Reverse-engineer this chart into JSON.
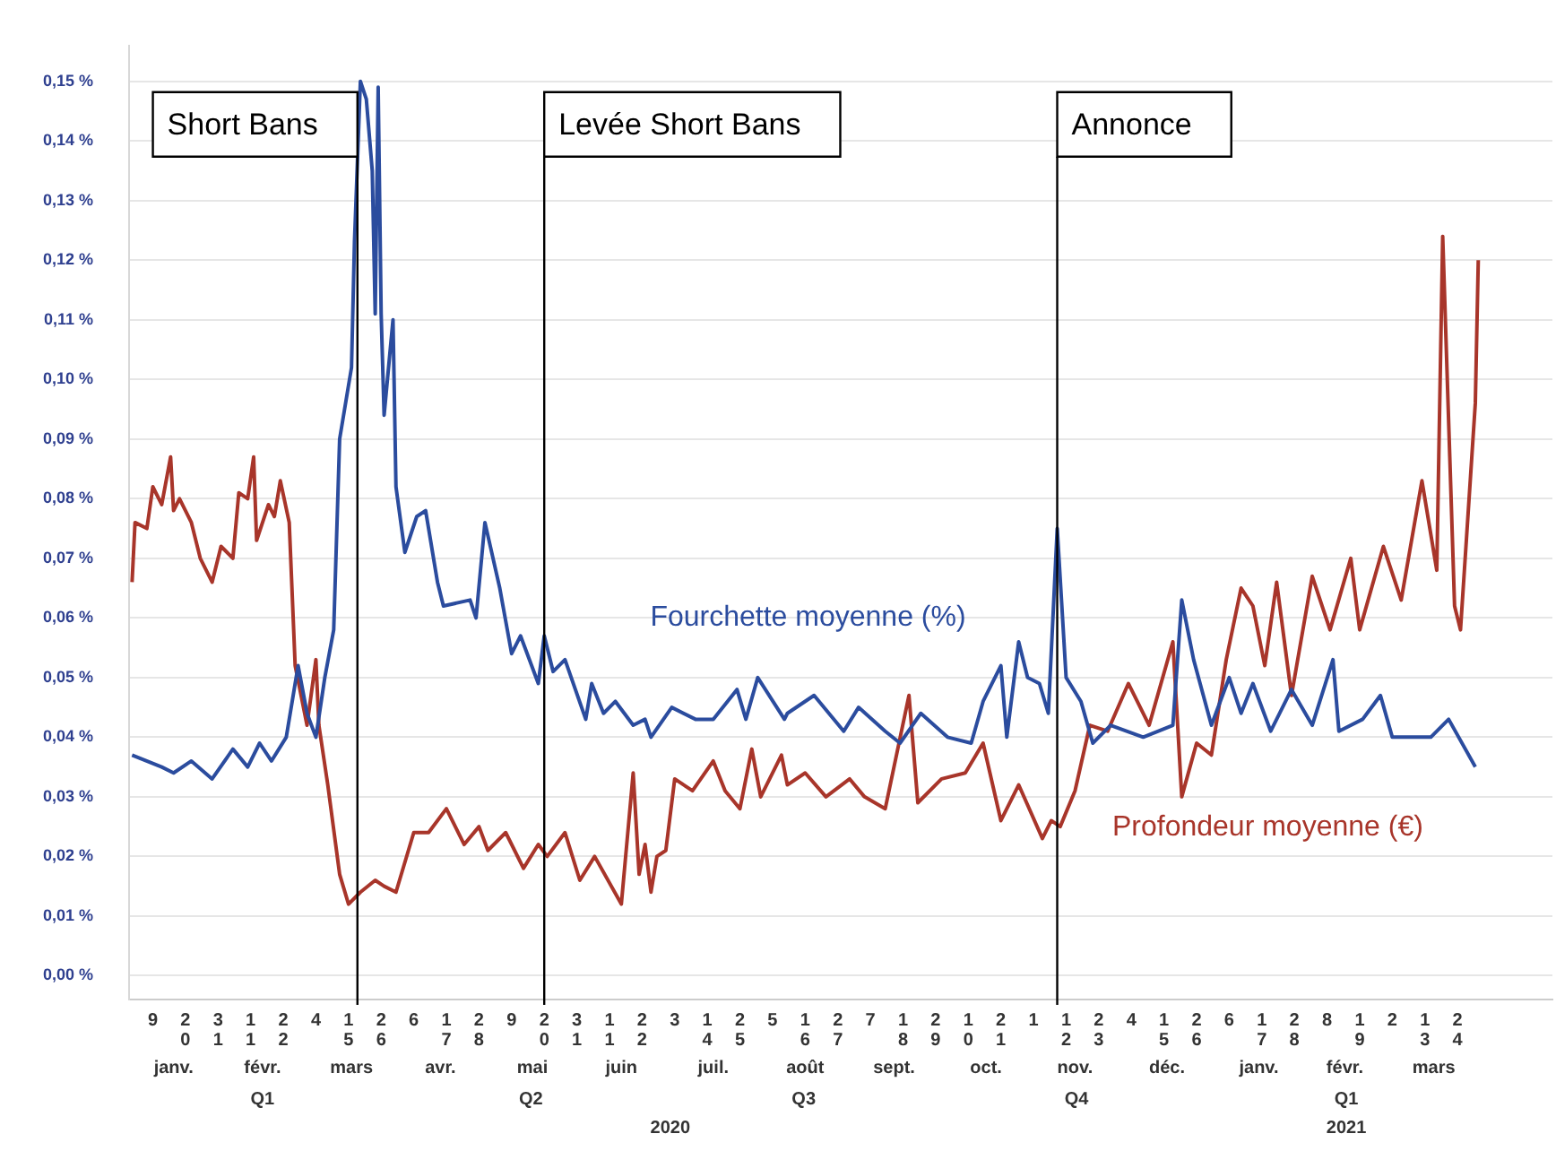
{
  "chart_data": {
    "type": "line",
    "series": [
      {
        "name": "Fourchette moyenne (%)",
        "color": "#2b4c9e",
        "x": [
          "2020-01-02",
          "2020-01-12",
          "2020-01-16",
          "2020-01-22",
          "2020-01-29",
          "2020-02-05",
          "2020-02-10",
          "2020-02-14",
          "2020-02-18",
          "2020-02-23",
          "2020-02-27",
          "2020-03-01",
          "2020-03-04",
          "2020-03-07",
          "2020-03-10",
          "2020-03-12",
          "2020-03-16",
          "2020-03-17",
          "2020-03-19",
          "2020-03-21",
          "2020-03-23",
          "2020-03-24",
          "2020-03-25",
          "2020-03-26",
          "2020-03-27",
          "2020-03-30",
          "2020-03-31",
          "2020-04-03",
          "2020-04-07",
          "2020-04-10",
          "2020-04-14",
          "2020-04-16",
          "2020-04-25",
          "2020-04-27",
          "2020-04-30",
          "2020-05-05",
          "2020-05-09",
          "2020-05-12",
          "2020-05-18",
          "2020-05-20",
          "2020-05-23",
          "2020-05-27",
          "2020-06-03",
          "2020-06-05",
          "2020-06-09",
          "2020-06-13",
          "2020-06-19",
          "2020-06-23",
          "2020-06-25",
          "2020-07-02",
          "2020-07-10",
          "2020-07-16",
          "2020-07-24",
          "2020-07-27",
          "2020-07-31",
          "2020-08-09",
          "2020-08-10",
          "2020-08-19",
          "2020-08-29",
          "2020-09-03",
          "2020-09-12",
          "2020-09-17",
          "2020-09-24",
          "2020-10-03",
          "2020-10-11",
          "2020-10-15",
          "2020-10-21",
          "2020-10-23",
          "2020-10-27",
          "2020-10-30",
          "2020-11-03",
          "2020-11-06",
          "2020-11-09",
          "2020-11-12",
          "2020-11-17",
          "2020-11-21",
          "2020-11-27",
          "2020-12-08",
          "2020-12-18",
          "2020-12-21",
          "2020-12-25",
          "2020-12-31",
          "2021-01-06",
          "2021-01-10",
          "2021-01-14",
          "2021-01-20",
          "2021-01-27",
          "2021-02-03",
          "2021-02-10",
          "2021-02-12",
          "2021-02-20",
          "2021-02-26",
          "2021-03-02",
          "2021-03-15",
          "2021-03-21",
          "2021-03-30"
        ],
        "values": [
          0.037,
          0.035,
          0.034,
          0.036,
          0.033,
          0.038,
          0.035,
          0.039,
          0.036,
          0.04,
          0.052,
          0.044,
          0.04,
          0.05,
          0.058,
          0.09,
          0.102,
          0.123,
          0.15,
          0.147,
          0.135,
          0.111,
          0.149,
          0.111,
          0.094,
          0.11,
          0.082,
          0.071,
          0.077,
          0.078,
          0.066,
          0.062,
          0.063,
          0.06,
          0.076,
          0.065,
          0.054,
          0.057,
          0.049,
          0.057,
          0.051,
          0.053,
          0.043,
          0.049,
          0.044,
          0.046,
          0.042,
          0.043,
          0.04,
          0.045,
          0.043,
          0.043,
          0.048,
          0.043,
          0.05,
          0.043,
          0.044,
          0.047,
          0.041,
          0.045,
          0.041,
          0.039,
          0.044,
          0.04,
          0.039,
          0.046,
          0.052,
          0.04,
          0.056,
          0.05,
          0.049,
          0.044,
          0.075,
          0.05,
          0.046,
          0.039,
          0.042,
          0.04,
          0.042,
          0.063,
          0.053,
          0.042,
          0.05,
          0.044,
          0.049,
          0.041,
          0.048,
          0.042,
          0.053,
          0.041,
          0.043,
          0.047,
          0.04,
          0.04,
          0.043,
          0.035
        ]
      },
      {
        "name": "Profondeur moyenne (€)",
        "color": "#a8352a",
        "x": [
          "2020-01-02",
          "2020-01-03",
          "2020-01-07",
          "2020-01-09",
          "2020-01-12",
          "2020-01-15",
          "2020-01-16",
          "2020-01-18",
          "2020-01-22",
          "2020-01-25",
          "2020-01-29",
          "2020-02-01",
          "2020-02-05",
          "2020-02-07",
          "2020-02-10",
          "2020-02-12",
          "2020-02-13",
          "2020-02-17",
          "2020-02-19",
          "2020-02-21",
          "2020-02-24",
          "2020-02-26",
          "2020-03-01",
          "2020-03-04",
          "2020-03-05",
          "2020-03-08",
          "2020-03-12",
          "2020-03-15",
          "2020-03-19",
          "2020-03-24",
          "2020-03-27",
          "2020-03-31",
          "2020-04-06",
          "2020-04-11",
          "2020-04-17",
          "2020-04-23",
          "2020-04-28",
          "2020-05-01",
          "2020-05-07",
          "2020-05-13",
          "2020-05-18",
          "2020-05-21",
          "2020-05-27",
          "2020-06-01",
          "2020-06-06",
          "2020-06-15",
          "2020-06-19",
          "2020-06-21",
          "2020-06-23",
          "2020-06-25",
          "2020-06-27",
          "2020-06-30",
          "2020-07-03",
          "2020-07-09",
          "2020-07-16",
          "2020-07-20",
          "2020-07-25",
          "2020-07-29",
          "2020-08-01",
          "2020-08-08",
          "2020-08-10",
          "2020-08-16",
          "2020-08-23",
          "2020-08-31",
          "2020-09-05",
          "2020-09-12",
          "2020-09-20",
          "2020-09-23",
          "2020-10-01",
          "2020-10-09",
          "2020-10-15",
          "2020-10-21",
          "2020-10-27",
          "2020-11-04",
          "2020-11-07",
          "2020-11-10",
          "2020-11-15",
          "2020-11-20",
          "2020-11-26",
          "2020-12-03",
          "2020-12-10",
          "2020-12-18",
          "2020-12-21",
          "2020-12-26",
          "2020-12-31",
          "2021-01-05",
          "2021-01-10",
          "2021-01-14",
          "2021-01-18",
          "2021-01-22",
          "2021-01-27",
          "2021-02-03",
          "2021-02-09",
          "2021-02-16",
          "2021-02-19",
          "2021-02-27",
          "2021-03-05",
          "2021-03-12",
          "2021-03-17",
          "2021-03-19",
          "2021-03-23",
          "2021-03-25",
          "2021-03-30",
          "2021-03-31"
        ],
        "values": [
          0.066,
          0.076,
          0.075,
          0.082,
          0.079,
          0.087,
          0.078,
          0.08,
          0.076,
          0.07,
          0.066,
          0.072,
          0.07,
          0.081,
          0.08,
          0.087,
          0.073,
          0.079,
          0.077,
          0.083,
          0.076,
          0.052,
          0.042,
          0.053,
          0.042,
          0.032,
          0.017,
          0.012,
          0.014,
          0.016,
          0.015,
          0.014,
          0.024,
          0.024,
          0.028,
          0.022,
          0.025,
          0.021,
          0.024,
          0.018,
          0.022,
          0.02,
          0.024,
          0.016,
          0.02,
          0.012,
          0.034,
          0.017,
          0.022,
          0.014,
          0.02,
          0.021,
          0.033,
          0.031,
          0.036,
          0.031,
          0.028,
          0.038,
          0.03,
          0.037,
          0.032,
          0.034,
          0.03,
          0.033,
          0.03,
          0.028,
          0.047,
          0.029,
          0.033,
          0.034,
          0.039,
          0.026,
          0.032,
          0.023,
          0.026,
          0.025,
          0.031,
          0.042,
          0.041,
          0.049,
          0.042,
          0.056,
          0.03,
          0.039,
          0.037,
          0.053,
          0.065,
          0.062,
          0.052,
          0.066,
          0.047,
          0.067,
          0.058,
          0.07,
          0.058,
          0.072,
          0.063,
          0.083,
          0.068,
          0.124,
          0.062,
          0.058,
          0.096,
          0.12
        ]
      }
    ],
    "ylim": [
      -0.004,
      0.156
    ],
    "yticks": [
      {
        "value": 0,
        "label": "0,00 %"
      },
      {
        "value": 0.01,
        "label": "0,01 %"
      },
      {
        "value": 0.02,
        "label": "0,02 %"
      },
      {
        "value": 0.03,
        "label": "0,03 %"
      },
      {
        "value": 0.04,
        "label": "0,04 %"
      },
      {
        "value": 0.05,
        "label": "0,05 %"
      },
      {
        "value": 0.06,
        "label": "0,06 %"
      },
      {
        "value": 0.07,
        "label": "0,07 %"
      },
      {
        "value": 0.08,
        "label": "0,08 %"
      },
      {
        "value": 0.09,
        "label": "0,09 %"
      },
      {
        "value": 0.1,
        "label": "0,10 %"
      },
      {
        "value": 0.11,
        "label": "0,11 %"
      },
      {
        "value": 0.12,
        "label": "0,12 %"
      },
      {
        "value": 0.13,
        "label": "0,13 %"
      },
      {
        "value": 0.14,
        "label": "0,14 %"
      },
      {
        "value": 0.15,
        "label": "0,15 %"
      }
    ],
    "xlim": [
      "2020-01-01",
      "2021-04-25"
    ],
    "xticks": [
      {
        "value": "2020-01-09",
        "label": "9"
      },
      {
        "value": "2020-01-20",
        "label": "20"
      },
      {
        "value": "2020-01-31",
        "label": "31"
      },
      {
        "value": "2020-02-11",
        "label": "11"
      },
      {
        "value": "2020-02-22",
        "label": "22"
      },
      {
        "value": "2020-03-04",
        "label": "4"
      },
      {
        "value": "2020-03-15",
        "label": "15"
      },
      {
        "value": "2020-03-26",
        "label": "26"
      },
      {
        "value": "2020-04-06",
        "label": "6"
      },
      {
        "value": "2020-04-17",
        "label": "17"
      },
      {
        "value": "2020-04-28",
        "label": "28"
      },
      {
        "value": "2020-05-09",
        "label": "9"
      },
      {
        "value": "2020-05-20",
        "label": "20"
      },
      {
        "value": "2020-05-31",
        "label": "31"
      },
      {
        "value": "2020-06-11",
        "label": "11"
      },
      {
        "value": "2020-06-22",
        "label": "22"
      },
      {
        "value": "2020-07-03",
        "label": "3"
      },
      {
        "value": "2020-07-14",
        "label": "14"
      },
      {
        "value": "2020-07-25",
        "label": "25"
      },
      {
        "value": "2020-08-05",
        "label": "5"
      },
      {
        "value": "2020-08-16",
        "label": "16"
      },
      {
        "value": "2020-08-27",
        "label": "27"
      },
      {
        "value": "2020-09-07",
        "label": "7"
      },
      {
        "value": "2020-09-18",
        "label": "18"
      },
      {
        "value": "2020-09-29",
        "label": "29"
      },
      {
        "value": "2020-10-10",
        "label": "10"
      },
      {
        "value": "2020-10-21",
        "label": "21"
      },
      {
        "value": "2020-11-01",
        "label": "1"
      },
      {
        "value": "2020-11-12",
        "label": "12"
      },
      {
        "value": "2020-11-23",
        "label": "23"
      },
      {
        "value": "2020-12-04",
        "label": "4"
      },
      {
        "value": "2020-12-15",
        "label": "15"
      },
      {
        "value": "2020-12-26",
        "label": "26"
      },
      {
        "value": "2021-01-06",
        "label": "6"
      },
      {
        "value": "2021-01-17",
        "label": "17"
      },
      {
        "value": "2021-01-28",
        "label": "28"
      },
      {
        "value": "2021-02-08",
        "label": "8"
      },
      {
        "value": "2021-02-19",
        "label": "19"
      },
      {
        "value": "2021-03-02",
        "label": "2"
      },
      {
        "value": "2021-03-13",
        "label": "13"
      },
      {
        "value": "2021-03-24",
        "label": "24"
      }
    ],
    "x2lim": [
      "2020-01-01",
      "2021-04-25"
    ],
    "x2ticks": [
      {
        "value": "2020-01-16",
        "label": "janv."
      },
      {
        "value": "2020-02-15",
        "label": "févr."
      },
      {
        "value": "2020-03-16",
        "label": "mars"
      },
      {
        "value": "2020-04-15",
        "label": "avr."
      },
      {
        "value": "2020-05-16",
        "label": "mai"
      },
      {
        "value": "2020-06-15",
        "label": "juin"
      },
      {
        "value": "2020-07-16",
        "label": "juil."
      },
      {
        "value": "2020-08-16",
        "label": "août"
      },
      {
        "value": "2020-09-15",
        "label": "sept."
      },
      {
        "value": "2020-10-16",
        "label": "oct."
      },
      {
        "value": "2020-11-15",
        "label": "nov."
      },
      {
        "value": "2020-12-16",
        "label": "déc."
      },
      {
        "value": "2021-01-16",
        "label": "janv."
      },
      {
        "value": "2021-02-14",
        "label": "févr."
      },
      {
        "value": "2021-03-16",
        "label": "mars"
      }
    ],
    "annotations": [
      "Q1",
      "Q2",
      "Q3",
      "Q4",
      "Q1",
      "2020",
      "2021"
    ],
    "ref_lines": [
      {
        "axis": "x",
        "value": "2020-03-18",
        "label": "Short Bans",
        "color": "#000000"
      },
      {
        "axis": "x",
        "value": "2020-05-20",
        "label": "Levée Short Bans",
        "color": "#000000"
      },
      {
        "axis": "x",
        "value": "2020-11-09",
        "label": "Annonce",
        "color": "#000000"
      }
    ],
    "grid": "y",
    "legend": false,
    "marker": "none",
    "line_style": "solid"
  }
}
